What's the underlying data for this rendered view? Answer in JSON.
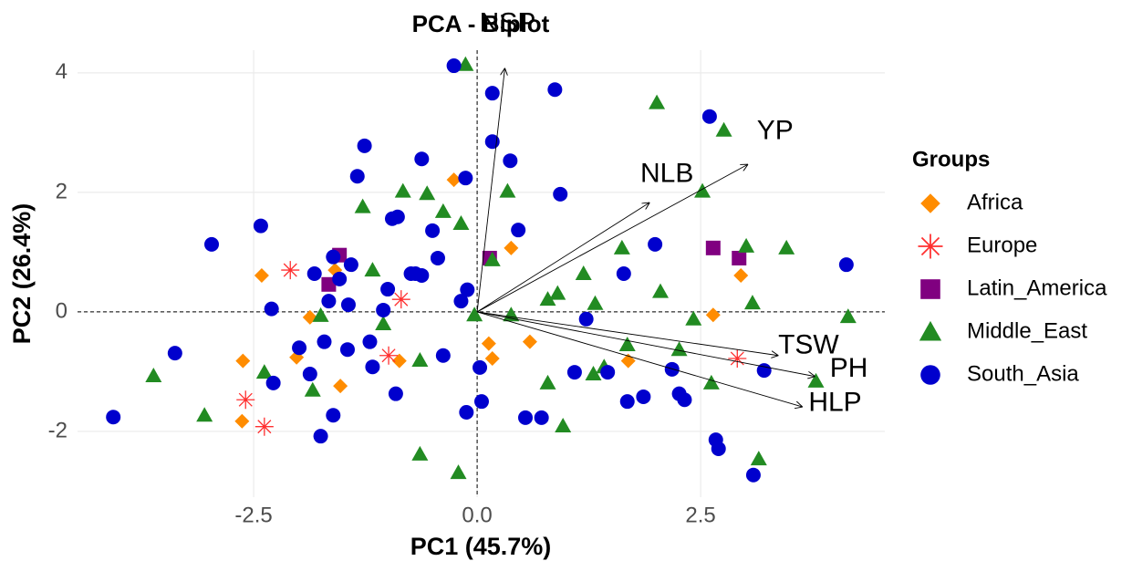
{
  "chart_data": {
    "type": "scatter",
    "title": "PCA - Biplot",
    "x_label": "PC1 (45.7%)",
    "y_label": "PC2 (26.4%)",
    "xlim": [
      -4.47,
      4.56
    ],
    "ylim": [
      -3.1,
      4.38
    ],
    "xticks": [
      -2.5,
      {
        "value": 0,
        "label": "0.0"
      },
      2.5
    ],
    "yticks": [
      -2,
      0,
      2,
      4
    ],
    "grid": true,
    "legend_title": "Groups",
    "series": [
      {
        "name": "Africa",
        "color": "#ff8c00",
        "marker": "diamond",
        "x": [
          -2.41,
          -2.62,
          -2.63,
          -2.02,
          -1.87,
          -1.59,
          -1.53,
          -0.87,
          -0.26,
          0.17,
          0.38,
          0.59,
          1.69,
          2.64,
          2.95,
          0.13
        ],
        "y": [
          0.61,
          -0.82,
          -1.83,
          -0.76,
          -0.09,
          0.7,
          -1.24,
          -0.82,
          2.21,
          -0.78,
          1.07,
          -0.5,
          -0.82,
          -0.05,
          0.61,
          -0.53
        ]
      },
      {
        "name": "Europe",
        "color": "#ff3030",
        "marker": "asterisk",
        "x": [
          -2.59,
          -2.38,
          -2.09,
          -0.85,
          -0.99,
          2.91
        ],
        "y": [
          -1.47,
          -1.92,
          0.7,
          0.21,
          -0.73,
          -0.78
        ]
      },
      {
        "name": "Latin_America",
        "color": "#800080",
        "marker": "square",
        "x": [
          -1.54,
          -1.66,
          0.14,
          2.64,
          2.93
        ],
        "y": [
          0.95,
          0.46,
          0.9,
          1.07,
          0.9
        ]
      },
      {
        "name": "Middle_East",
        "color": "#228b22",
        "marker": "triangle",
        "x": [
          -3.62,
          -3.05,
          -2.38,
          -1.84,
          -1.75,
          -1.28,
          -1.17,
          -1.05,
          -0.83,
          -0.64,
          -0.56,
          -0.38,
          -0.64,
          -0.21,
          -0.13,
          -0.18,
          -0.03,
          0.17,
          0.34,
          0.38,
          0.79,
          0.9,
          0.96,
          1.19,
          1.32,
          1.42,
          1.62,
          1.68,
          2.01,
          2.05,
          2.26,
          2.42,
          2.52,
          2.76,
          3.01,
          3.08,
          3.46,
          3.79,
          4.15,
          3.15,
          2.62,
          1.3,
          0.79
        ],
        "y": [
          -1.07,
          -1.73,
          -1.01,
          -1.31,
          -0.06,
          1.76,
          0.7,
          -0.2,
          2.02,
          -0.81,
          1.98,
          1.68,
          -2.38,
          -2.69,
          4.14,
          1.48,
          -0.05,
          0.87,
          2.02,
          -0.05,
          0.21,
          0.31,
          -1.91,
          0.64,
          0.14,
          -0.92,
          1.07,
          -0.55,
          3.5,
          0.34,
          -0.63,
          -0.12,
          2.02,
          3.04,
          1.1,
          0.15,
          1.07,
          -1.16,
          -0.08,
          -2.46,
          -1.19,
          -1.04,
          -1.19
        ]
      },
      {
        "name": "South_Asia",
        "color": "#0000cd",
        "marker": "circle",
        "x": [
          -4.07,
          -3.38,
          -2.97,
          -2.42,
          -2.3,
          -2.28,
          -1.99,
          -1.87,
          -1.75,
          -1.61,
          -1.61,
          -1.54,
          -1.44,
          -1.41,
          -1.34,
          -1.26,
          -1.2,
          -1.17,
          -1.05,
          -1.0,
          -0.95,
          -0.89,
          -0.91,
          -0.69,
          -0.62,
          -0.5,
          -0.44,
          -0.38,
          -0.26,
          -0.13,
          -0.12,
          0.03,
          0.17,
          0.17,
          0.05,
          0.37,
          0.46,
          0.54,
          0.72,
          0.87,
          0.93,
          1.09,
          1.22,
          1.46,
          1.64,
          1.68,
          1.86,
          1.99,
          2.18,
          2.26,
          2.32,
          2.6,
          2.67,
          2.7,
          3.21,
          3.09,
          4.13,
          -0.18,
          -0.11,
          -1.66,
          -1.71,
          -1.82,
          -0.74,
          -0.62,
          -1.45
        ],
        "y": [
          -1.76,
          -0.69,
          1.13,
          1.44,
          0.05,
          -1.19,
          -0.6,
          -1.04,
          -2.08,
          -1.73,
          0.92,
          0.55,
          0.12,
          0.79,
          2.27,
          2.78,
          -0.5,
          -0.92,
          0.03,
          0.38,
          1.56,
          1.59,
          -1.37,
          0.64,
          2.56,
          1.36,
          0.9,
          -0.73,
          4.12,
          2.24,
          -1.68,
          -0.93,
          3.66,
          2.85,
          -1.5,
          2.53,
          1.37,
          -1.77,
          -1.77,
          3.72,
          1.97,
          -1.01,
          -0.12,
          -1.01,
          0.64,
          -1.5,
          -1.42,
          1.13,
          -0.96,
          -1.37,
          -1.47,
          3.27,
          -2.14,
          -2.29,
          -0.98,
          -2.73,
          0.79,
          0.18,
          0.37,
          0.18,
          -0.5,
          0.64,
          0.64,
          0.61,
          -0.63
        ]
      }
    ],
    "loadings": [
      {
        "name": "NSP",
        "x": 0.31,
        "y": 4.08
      },
      {
        "name": "YP",
        "x": 3.03,
        "y": 2.47
      },
      {
        "name": "NLB",
        "x": 1.93,
        "y": 1.83
      },
      {
        "name": "TSW",
        "x": 3.37,
        "y": -0.73
      },
      {
        "name": "PH",
        "x": 3.78,
        "y": -1.08
      },
      {
        "name": "HLP",
        "x": 3.64,
        "y": -1.59
      }
    ]
  }
}
